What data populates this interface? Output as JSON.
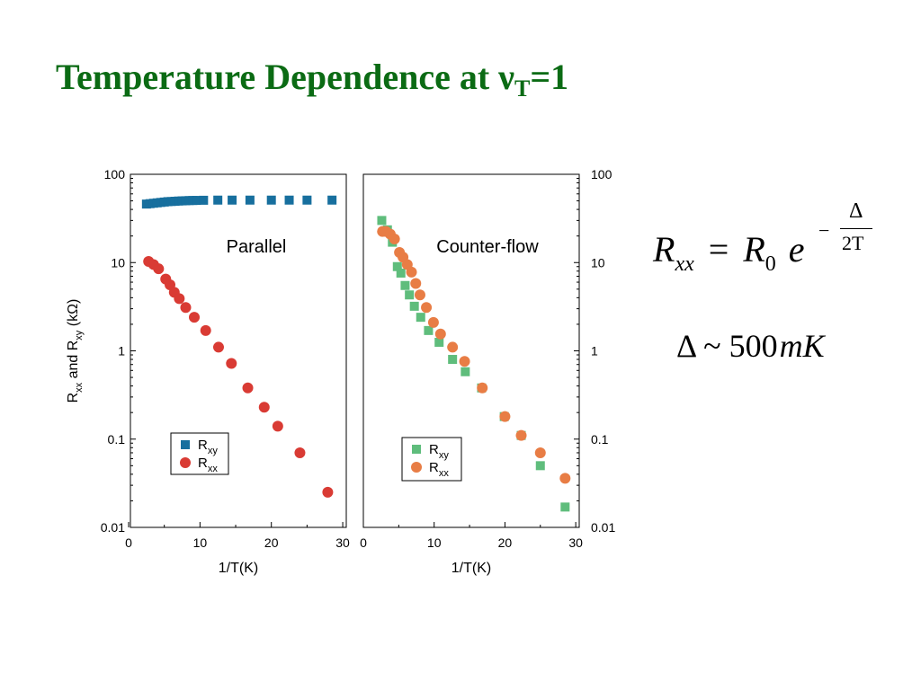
{
  "slide": {
    "title_main": "Temperature Dependence at ν",
    "title_sub": "T",
    "title_tail": "=1"
  },
  "formula": {
    "lhs": "R",
    "lhs_sub": "xx",
    "equals": "=",
    "rhs": "R",
    "rhs_sub": "0",
    "exp_base": "e",
    "exp_minus": "−",
    "exp_num": "Δ",
    "exp_den": "2T"
  },
  "gap": {
    "symbol": "Δ",
    "tilde": "~",
    "value": "500",
    "unit": "mK"
  },
  "colors": {
    "rxy_parallel": "#176f9e",
    "rxx_parallel": "#d93b34",
    "rxy_counter": "#5fbd7c",
    "rxx_counter": "#e87d45",
    "title": "#0b6b14"
  },
  "chart_data": [
    {
      "type": "scatter",
      "panel_label": "Parallel",
      "xlabel": "1/T(K)",
      "ylabel_parts": [
        "R",
        "xx",
        " and R",
        "xy",
        " (kΩ)"
      ],
      "x_ticks": [
        "0",
        "10",
        "20",
        "30"
      ],
      "y_ticks": [
        "100",
        "10",
        "1",
        "0.1",
        "0.01"
      ],
      "xlim": [
        0,
        31
      ],
      "ylim": [
        0.01,
        100
      ],
      "yscale": "log",
      "legend_position": "bottom-center",
      "series": [
        {
          "name": "R",
          "name_sub": "xy",
          "marker": "square",
          "color": "#176f9e",
          "x": [
            2.5,
            3.0,
            3.5,
            4.0,
            4.5,
            5.0,
            5.5,
            6.0,
            6.5,
            7.0,
            7.5,
            8.0,
            8.5,
            9.0,
            9.5,
            10.5,
            12.5,
            14.5,
            17.0,
            20.0,
            22.5,
            25.0,
            28.5
          ],
          "y": [
            46,
            46.5,
            47,
            47.5,
            48,
            48.5,
            49,
            49.2,
            49.5,
            49.8,
            50,
            50.2,
            50.4,
            50.5,
            50.6,
            50.8,
            51,
            51,
            51,
            51,
            51,
            51,
            51
          ]
        },
        {
          "name": "R",
          "name_sub": "xx",
          "marker": "circle",
          "color": "#d93b34",
          "x": [
            2.8,
            3.5,
            4.2,
            5.2,
            5.8,
            6.4,
            7.1,
            8.0,
            9.2,
            10.8,
            12.6,
            14.4,
            16.7,
            19.0,
            20.9,
            24.0,
            27.9
          ],
          "y": [
            10.3,
            9.5,
            8.5,
            6.5,
            5.6,
            4.6,
            3.9,
            3.1,
            2.4,
            1.7,
            1.1,
            0.72,
            0.38,
            0.23,
            0.14,
            0.07,
            0.025
          ]
        }
      ]
    },
    {
      "type": "scatter",
      "panel_label": "Counter-flow",
      "xlabel": "1/T(K)",
      "x_ticks": [
        "0",
        "10",
        "20",
        "30"
      ],
      "y_ticks": [
        "100",
        "10",
        "1",
        "0.1",
        "0.01"
      ],
      "xlim": [
        0,
        31
      ],
      "ylim": [
        0.01,
        100
      ],
      "yscale": "log",
      "legend_position": "bottom-center",
      "series": [
        {
          "name": "R",
          "name_sub": "xy",
          "marker": "square",
          "color": "#5fbd7c",
          "x": [
            2.6,
            3.4,
            4.1,
            4.8,
            5.3,
            5.9,
            6.5,
            7.2,
            8.1,
            9.2,
            10.7,
            12.6,
            14.4,
            16.7,
            19.9,
            22.3,
            25.0,
            28.5
          ],
          "y": [
            30,
            23.5,
            17,
            9,
            7.6,
            5.5,
            4.3,
            3.2,
            2.4,
            1.7,
            1.25,
            0.8,
            0.58,
            0.38,
            0.18,
            0.11,
            0.05,
            0.017
          ]
        },
        {
          "name": "R",
          "name_sub": "xx",
          "marker": "circle",
          "color": "#e87d45",
          "x": [
            2.7,
            3.2,
            3.8,
            4.4,
            5.1,
            5.6,
            6.2,
            6.8,
            7.4,
            8.0,
            8.9,
            9.9,
            10.9,
            12.6,
            14.3,
            16.8,
            20.0,
            22.3,
            25.0,
            28.5
          ],
          "y": [
            22.5,
            22.5,
            21,
            18.5,
            13,
            11.5,
            9.5,
            7.8,
            5.8,
            4.3,
            3.1,
            2.1,
            1.55,
            1.1,
            0.76,
            0.38,
            0.18,
            0.11,
            0.07,
            0.036
          ]
        }
      ]
    }
  ]
}
